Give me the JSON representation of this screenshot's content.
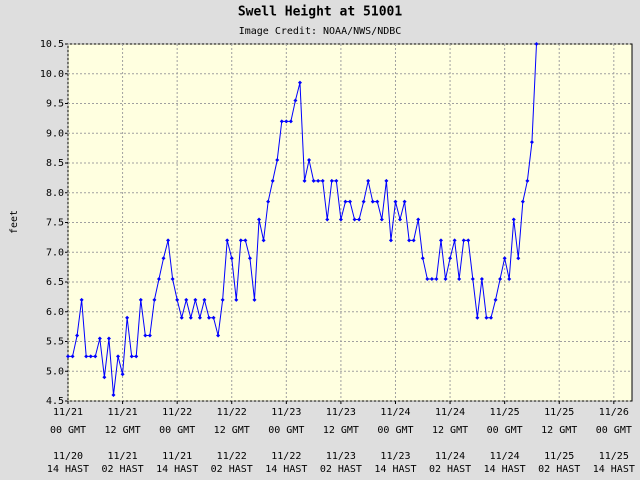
{
  "chart_data": {
    "type": "line",
    "title": "Swell Height at 51001",
    "subtitle": "Image Credit: NOAA/NWS/NDBC",
    "ylabel": "feet",
    "color": "#0000ff",
    "grid": true,
    "x": [
      0,
      1,
      2,
      3,
      4,
      5,
      6,
      7,
      8,
      9,
      10,
      11,
      12,
      13,
      14,
      15,
      16,
      17,
      18,
      19,
      20,
      21,
      22,
      23,
      24,
      25,
      26,
      27,
      28,
      29,
      30,
      31,
      32,
      33,
      34,
      35,
      36,
      37,
      38,
      39,
      40,
      41,
      42,
      43,
      44,
      45,
      46,
      47,
      48,
      49,
      50,
      51,
      52,
      53,
      54,
      55,
      56,
      57,
      58,
      59,
      60,
      61,
      62,
      63,
      64,
      65,
      66,
      67,
      68,
      69,
      70,
      71,
      72,
      73,
      74,
      75,
      76,
      77,
      78,
      79,
      80,
      81,
      82,
      83,
      84,
      85,
      86,
      87,
      88,
      89,
      90,
      91,
      92,
      93,
      94,
      95,
      96,
      97,
      98,
      99,
      100,
      101,
      102,
      103
    ],
    "values": [
      5.25,
      5.25,
      5.6,
      6.2,
      5.25,
      5.25,
      5.25,
      5.55,
      4.9,
      5.55,
      4.6,
      5.25,
      4.95,
      5.9,
      5.25,
      5.25,
      6.2,
      5.6,
      5.6,
      6.2,
      6.55,
      6.9,
      7.2,
      6.55,
      6.2,
      5.9,
      6.2,
      5.9,
      6.2,
      5.9,
      6.2,
      5.9,
      5.9,
      5.6,
      6.2,
      7.2,
      6.9,
      6.2,
      7.2,
      7.2,
      6.9,
      6.2,
      7.55,
      7.2,
      7.85,
      8.2,
      8.55,
      9.2,
      9.2,
      9.2,
      9.55,
      9.85,
      8.2,
      8.55,
      8.2,
      8.2,
      8.2,
      7.55,
      8.2,
      8.2,
      7.55,
      7.85,
      7.85,
      7.55,
      7.55,
      7.85,
      8.2,
      7.85,
      7.85,
      7.55,
      8.2,
      7.2,
      7.85,
      7.55,
      7.85,
      7.2,
      7.2,
      7.55,
      6.9,
      6.55,
      6.55,
      6.55,
      7.2,
      6.55,
      6.9,
      7.2,
      6.55,
      7.2,
      7.2,
      6.55,
      5.9,
      6.55,
      5.9,
      5.9,
      6.2,
      6.55,
      6.9,
      6.55,
      7.55,
      6.9,
      7.85,
      8.2,
      8.85,
      10.5
    ],
    "xlim": [
      0,
      124
    ],
    "xticks": [
      {
        "value": 0,
        "date": "11/21",
        "time": "00 GMT",
        "hast_date": "11/20",
        "hast_time": "14 HAST"
      },
      {
        "value": 12,
        "date": "11/21",
        "time": "12 GMT",
        "hast_date": "11/21",
        "hast_time": "02 HAST"
      },
      {
        "value": 24,
        "date": "11/22",
        "time": "00 GMT",
        "hast_date": "11/21",
        "hast_time": "14 HAST"
      },
      {
        "value": 36,
        "date": "11/22",
        "time": "12 GMT",
        "hast_date": "11/22",
        "hast_time": "02 HAST"
      },
      {
        "value": 48,
        "date": "11/23",
        "time": "00 GMT",
        "hast_date": "11/22",
        "hast_time": "14 HAST"
      },
      {
        "value": 60,
        "date": "11/23",
        "time": "12 GMT",
        "hast_date": "11/23",
        "hast_time": "02 HAST"
      },
      {
        "value": 72,
        "date": "11/24",
        "time": "00 GMT",
        "hast_date": "11/23",
        "hast_time": "14 HAST"
      },
      {
        "value": 84,
        "date": "11/24",
        "time": "12 GMT",
        "hast_date": "11/24",
        "hast_time": "02 HAST"
      },
      {
        "value": 96,
        "date": "11/25",
        "time": "00 GMT",
        "hast_date": "11/24",
        "hast_time": "14 HAST"
      },
      {
        "value": 108,
        "date": "11/25",
        "time": "12 GMT",
        "hast_date": "11/25",
        "hast_time": "02 HAST"
      },
      {
        "value": 120,
        "date": "11/26",
        "time": "00 GMT",
        "hast_date": "11/25",
        "hast_time": "14 HAST"
      }
    ],
    "ylim": [
      4.5,
      10.5
    ],
    "yticks": [
      4.5,
      {
        "value": 5,
        "label": "5.0"
      },
      5.5,
      {
        "value": 6,
        "label": "6.0"
      },
      6.5,
      {
        "value": 7,
        "label": "7.0"
      },
      7.5,
      {
        "value": 8,
        "label": "8.0"
      },
      8.5,
      {
        "value": 9,
        "label": "9.0"
      },
      9.5,
      {
        "value": 10,
        "label": "10.0"
      },
      10.5
    ]
  }
}
